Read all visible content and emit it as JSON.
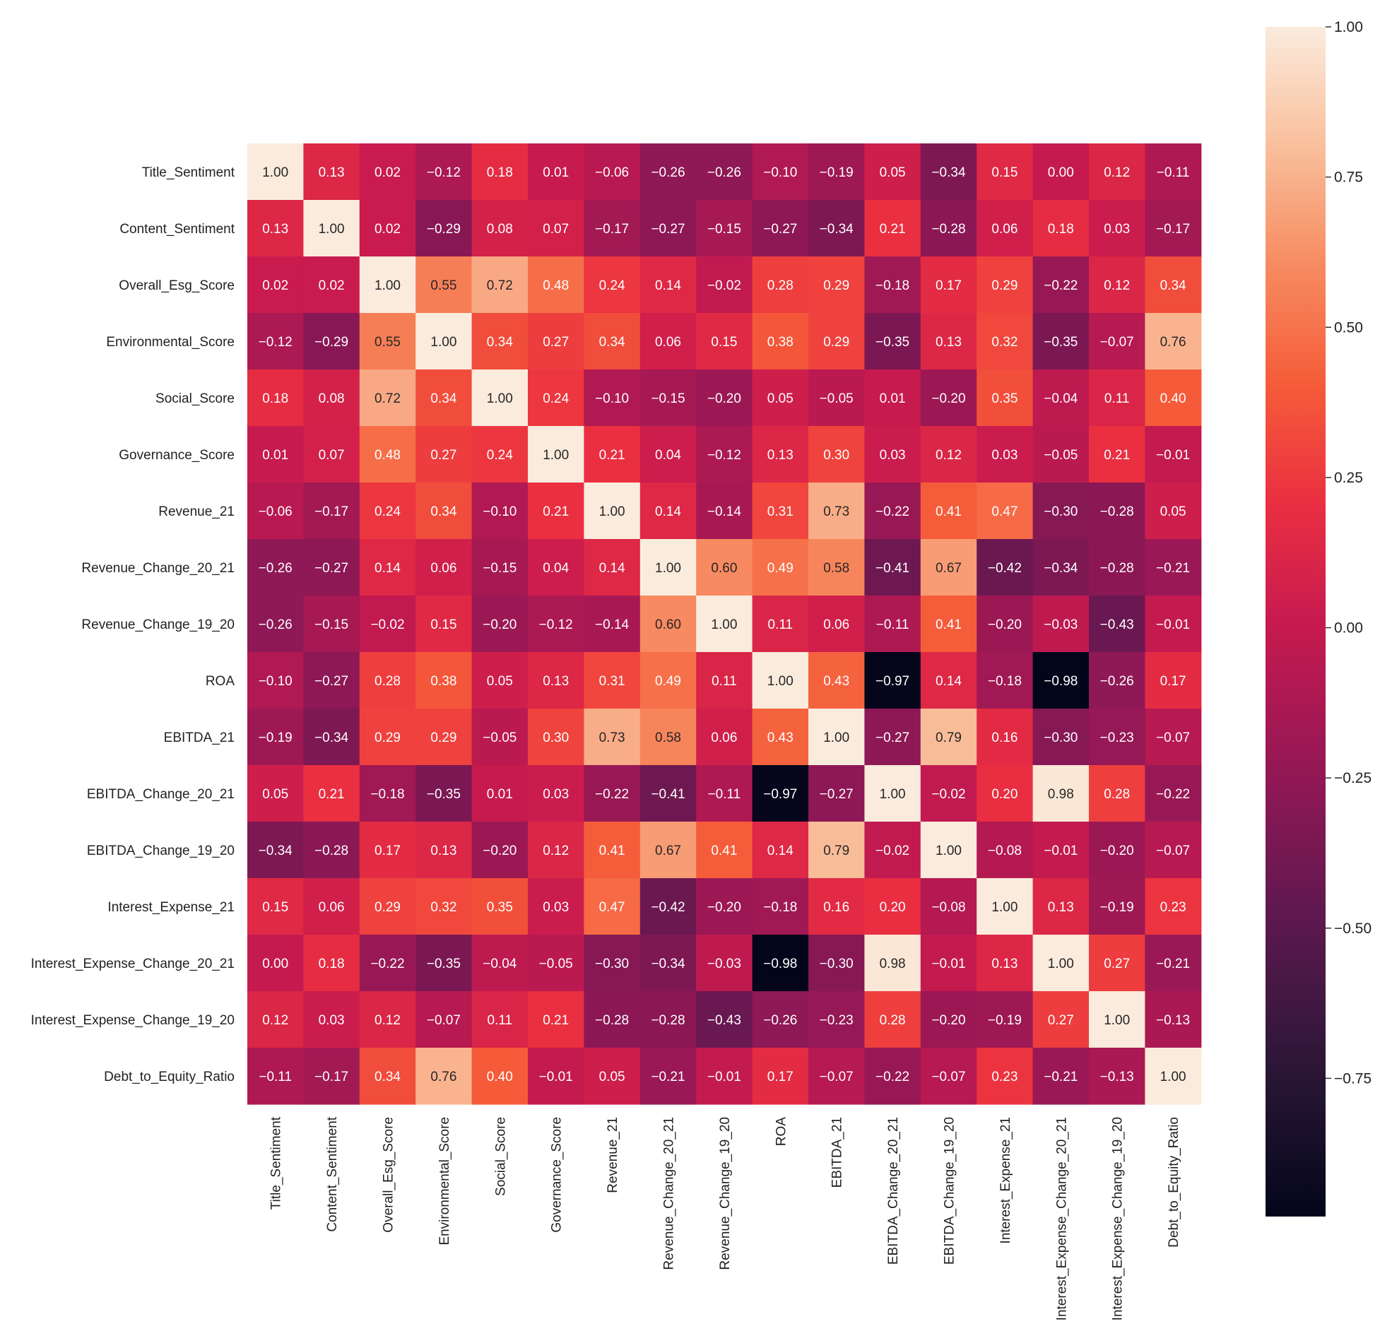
{
  "chart_data": {
    "type": "heatmap",
    "title": "",
    "xlabel": "",
    "ylabel": "",
    "variables": [
      "Title_Sentiment",
      "Content_Sentiment",
      "Overall_Esg_Score",
      "Environmental_Score",
      "Social_Score",
      "Governance_Score",
      "Revenue_21",
      "Revenue_Change_20_21",
      "Revenue_Change_19_20",
      "ROA",
      "EBITDA_21",
      "EBITDA_Change_20_21",
      "EBITDA_Change_19_20",
      "Interest_Expense_21",
      "Interest_Expense_Change_20_21",
      "Interest_Expense_Change_19_20",
      "Debt_to_Equity_Ratio"
    ],
    "matrix": [
      [
        1.0,
        0.13,
        0.02,
        -0.12,
        0.18,
        0.01,
        -0.06,
        -0.26,
        -0.26,
        -0.1,
        -0.19,
        0.05,
        -0.34,
        0.15,
        0.0,
        0.12,
        -0.11
      ],
      [
        0.13,
        1.0,
        0.02,
        -0.29,
        0.08,
        0.07,
        -0.17,
        -0.27,
        -0.15,
        -0.27,
        -0.34,
        0.21,
        -0.28,
        0.06,
        0.18,
        0.03,
        -0.17
      ],
      [
        0.02,
        0.02,
        1.0,
        0.55,
        0.72,
        0.48,
        0.24,
        0.14,
        -0.02,
        0.28,
        0.29,
        -0.18,
        0.17,
        0.29,
        -0.22,
        0.12,
        0.34
      ],
      [
        -0.12,
        -0.29,
        0.55,
        1.0,
        0.34,
        0.27,
        0.34,
        0.06,
        0.15,
        0.38,
        0.29,
        -0.35,
        0.13,
        0.32,
        -0.35,
        -0.07,
        0.76
      ],
      [
        0.18,
        0.08,
        0.72,
        0.34,
        1.0,
        0.24,
        -0.1,
        -0.15,
        -0.2,
        0.05,
        -0.05,
        0.01,
        -0.2,
        0.35,
        -0.04,
        0.11,
        0.4
      ],
      [
        0.01,
        0.07,
        0.48,
        0.27,
        0.24,
        1.0,
        0.21,
        0.04,
        -0.12,
        0.13,
        0.3,
        0.03,
        0.12,
        0.03,
        -0.05,
        0.21,
        -0.01
      ],
      [
        -0.06,
        -0.17,
        0.24,
        0.34,
        -0.1,
        0.21,
        1.0,
        0.14,
        -0.14,
        0.31,
        0.73,
        -0.22,
        0.41,
        0.47,
        -0.3,
        -0.28,
        0.05
      ],
      [
        -0.26,
        -0.27,
        0.14,
        0.06,
        -0.15,
        0.04,
        0.14,
        1.0,
        0.6,
        0.49,
        0.58,
        -0.41,
        0.67,
        -0.42,
        -0.34,
        -0.28,
        -0.21
      ],
      [
        -0.26,
        -0.15,
        -0.02,
        0.15,
        -0.2,
        -0.12,
        -0.14,
        0.6,
        1.0,
        0.11,
        0.06,
        -0.11,
        0.41,
        -0.2,
        -0.03,
        -0.43,
        -0.01
      ],
      [
        -0.1,
        -0.27,
        0.28,
        0.38,
        0.05,
        0.13,
        0.31,
        0.49,
        0.11,
        1.0,
        0.43,
        -0.97,
        0.14,
        -0.18,
        -0.98,
        -0.26,
        0.17
      ],
      [
        -0.19,
        -0.34,
        0.29,
        0.29,
        -0.05,
        0.3,
        0.73,
        0.58,
        0.06,
        0.43,
        1.0,
        -0.27,
        0.79,
        0.16,
        -0.3,
        -0.23,
        -0.07
      ],
      [
        0.05,
        0.21,
        -0.18,
        -0.35,
        0.01,
        0.03,
        -0.22,
        -0.41,
        -0.11,
        -0.97,
        -0.27,
        1.0,
        -0.02,
        0.2,
        0.98,
        0.28,
        -0.22
      ],
      [
        -0.34,
        -0.28,
        0.17,
        0.13,
        -0.2,
        0.12,
        0.41,
        0.67,
        0.41,
        0.14,
        0.79,
        -0.02,
        1.0,
        -0.08,
        -0.01,
        -0.2,
        -0.07
      ],
      [
        0.15,
        0.06,
        0.29,
        0.32,
        0.35,
        0.03,
        0.47,
        -0.42,
        -0.2,
        -0.18,
        0.16,
        0.2,
        -0.08,
        1.0,
        0.13,
        -0.19,
        0.23
      ],
      [
        0.0,
        0.18,
        -0.22,
        -0.35,
        -0.04,
        -0.05,
        -0.3,
        -0.34,
        -0.03,
        -0.98,
        -0.3,
        0.98,
        -0.01,
        0.13,
        1.0,
        0.27,
        -0.21
      ],
      [
        0.12,
        0.03,
        0.12,
        -0.07,
        0.11,
        0.21,
        -0.28,
        -0.28,
        -0.43,
        -0.26,
        -0.23,
        0.28,
        -0.2,
        -0.19,
        0.27,
        1.0,
        -0.13
      ],
      [
        -0.11,
        -0.17,
        0.34,
        0.76,
        0.4,
        -0.01,
        0.05,
        -0.21,
        -0.01,
        0.17,
        -0.07,
        -0.22,
        -0.07,
        0.23,
        -0.21,
        -0.13,
        1.0
      ]
    ],
    "value_format": "2 decimals",
    "colorbar": {
      "range": [
        -0.98,
        1.0
      ],
      "ticks": [
        1.0,
        0.75,
        0.5,
        0.25,
        0.0,
        -0.25,
        -0.5,
        -0.75
      ],
      "tick_labels": [
        "1.00",
        "0.75",
        "0.50",
        "0.25",
        "0.00",
        "−0.25",
        "−0.50",
        "−0.75"
      ],
      "position": "right",
      "colormap": "rocket"
    },
    "grid": false,
    "legend": "none"
  }
}
